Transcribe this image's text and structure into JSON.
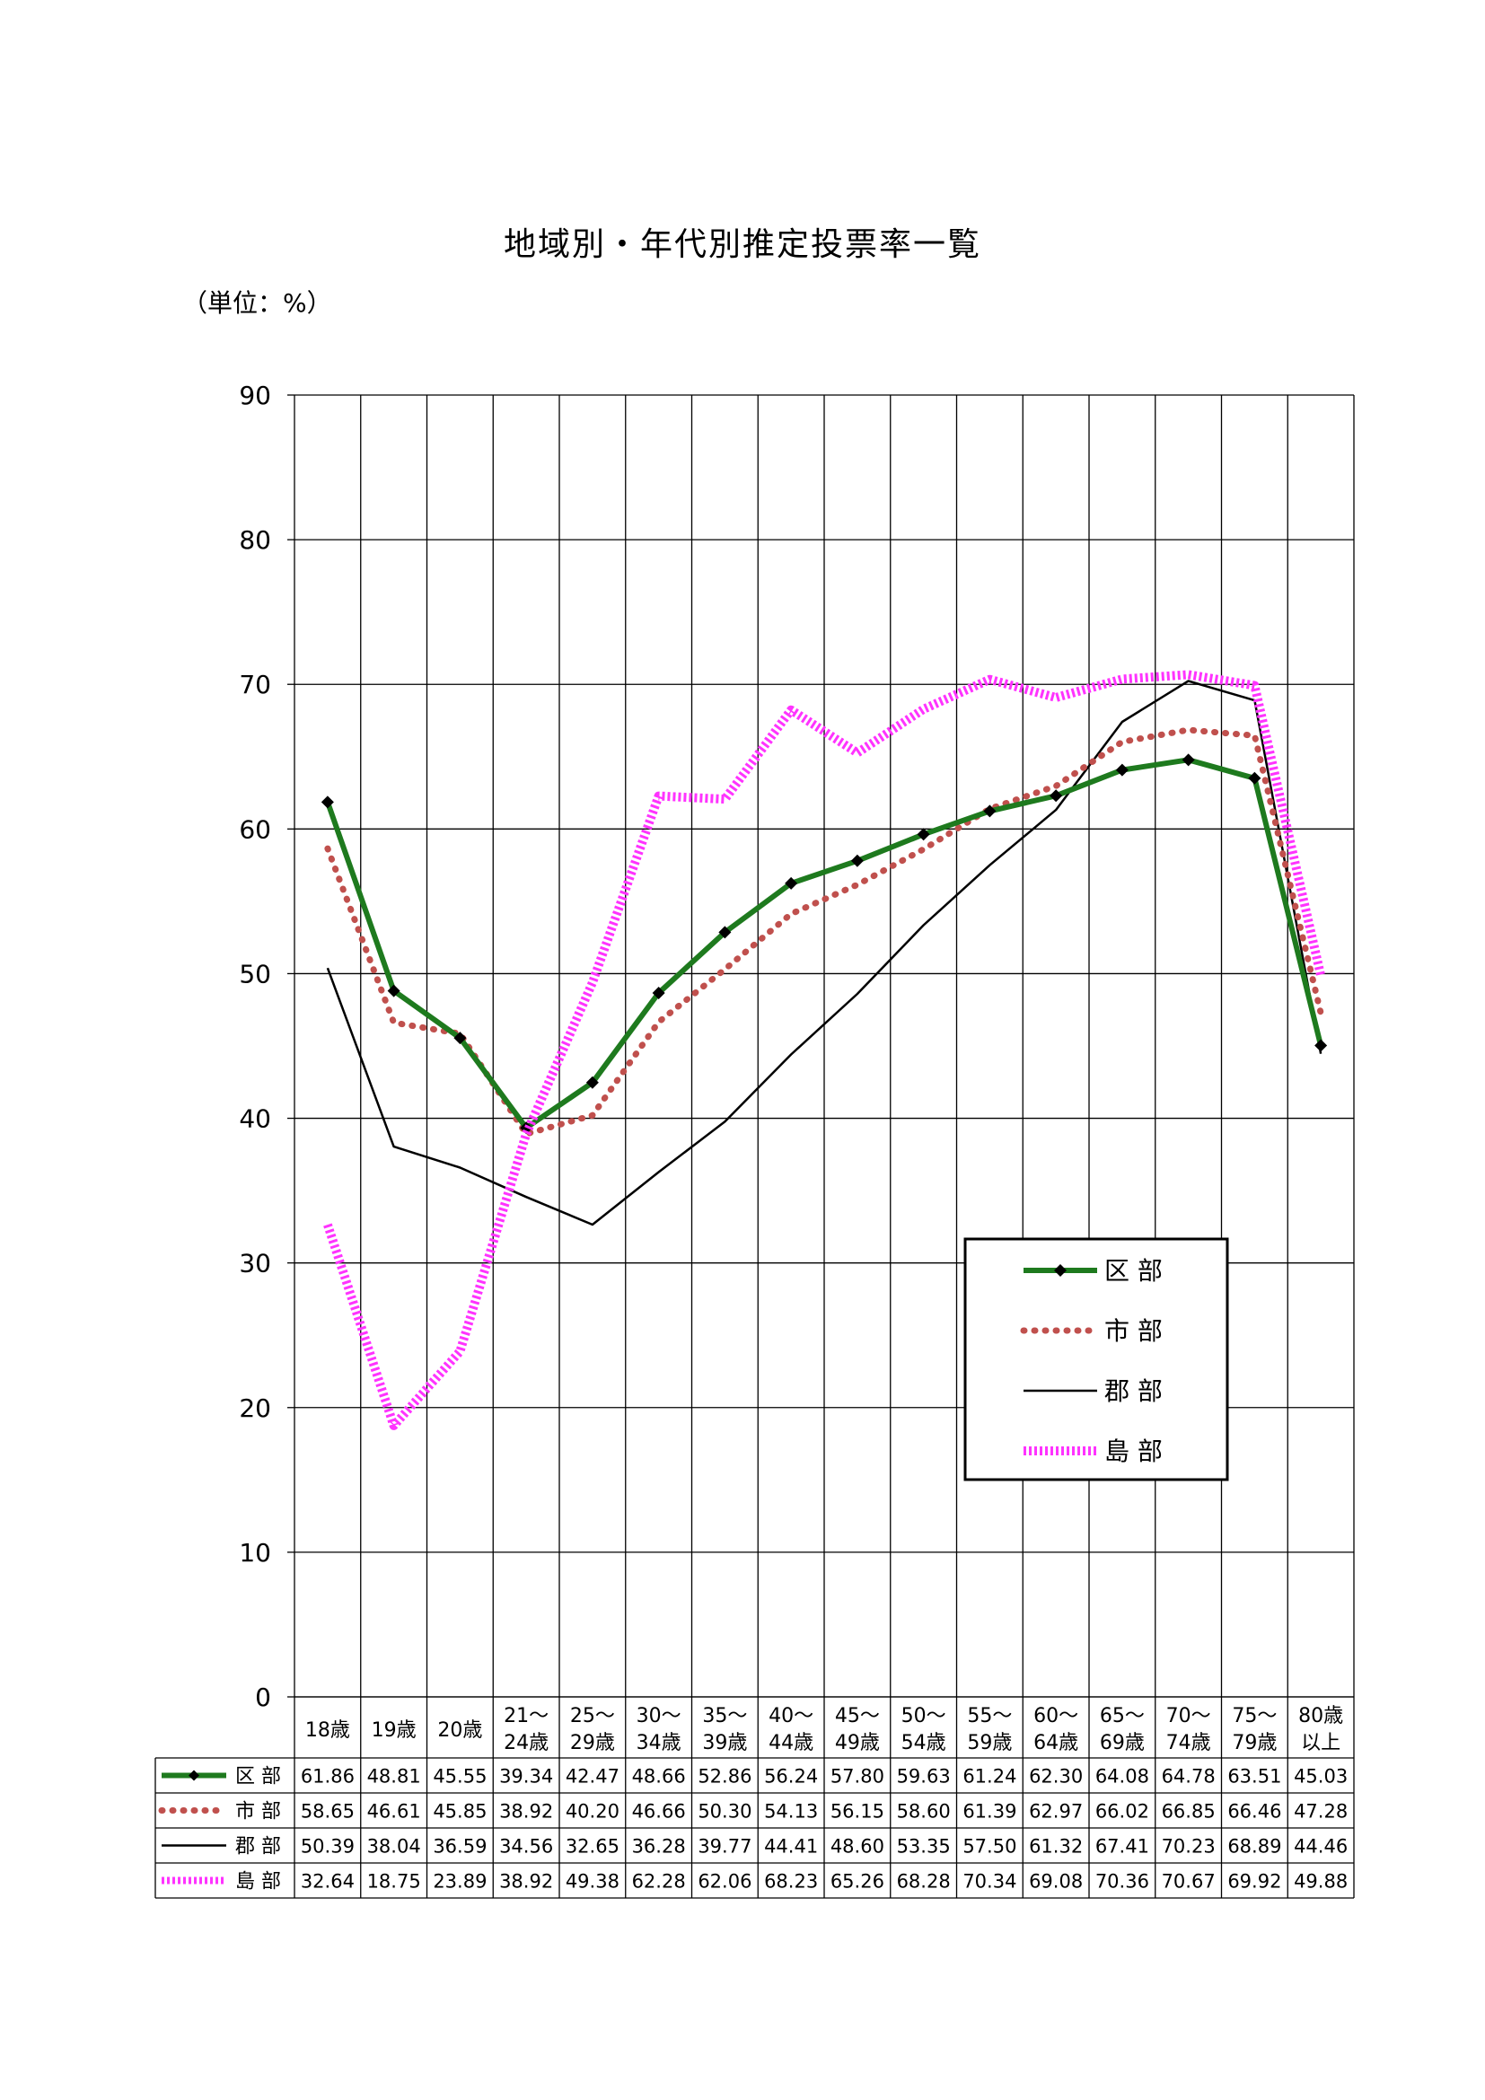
{
  "title": "地域別・年代別推定投票率一覧",
  "unit": "（単位：%）",
  "chart_data": {
    "type": "line",
    "title": "地域別・年代別推定投票率一覧",
    "ylabel": "",
    "xlabel": "",
    "ylim": [
      0,
      90
    ],
    "yticks": [
      0,
      10,
      20,
      30,
      40,
      50,
      60,
      70,
      80,
      90
    ],
    "grid": true,
    "legend_position": "bottom-right",
    "categories": [
      [
        "18歳"
      ],
      [
        "19歳"
      ],
      [
        "20歳"
      ],
      [
        "21～",
        "24歳"
      ],
      [
        "25～",
        "29歳"
      ],
      [
        "30～",
        "34歳"
      ],
      [
        "35～",
        "39歳"
      ],
      [
        "40～",
        "44歳"
      ],
      [
        "45～",
        "49歳"
      ],
      [
        "50～",
        "54歳"
      ],
      [
        "55～",
        "59歳"
      ],
      [
        "60～",
        "64歳"
      ],
      [
        "65～",
        "69歳"
      ],
      [
        "70～",
        "74歳"
      ],
      [
        "75～",
        "79歳"
      ],
      [
        "80歳",
        "以上"
      ]
    ],
    "series": [
      {
        "name": "区 部",
        "color": "#1e7a1e",
        "style": "solid-marker",
        "values": [
          "61.86",
          "48.81",
          "45.55",
          "39.34",
          "42.47",
          "48.66",
          "52.86",
          "56.24",
          "57.80",
          "59.63",
          "61.24",
          "62.30",
          "64.08",
          "64.78",
          "63.51",
          "45.03"
        ]
      },
      {
        "name": "市 部",
        "color": "#c0504d",
        "style": "dotted",
        "values": [
          "58.65",
          "46.61",
          "45.85",
          "38.92",
          "40.20",
          "46.66",
          "50.30",
          "54.13",
          "56.15",
          "58.60",
          "61.39",
          "62.97",
          "66.02",
          "66.85",
          "66.46",
          "47.28"
        ]
      },
      {
        "name": "郡 部",
        "color": "#000000",
        "style": "thin",
        "values": [
          "50.39",
          "38.04",
          "36.59",
          "34.56",
          "32.65",
          "36.28",
          "39.77",
          "44.41",
          "48.60",
          "53.35",
          "57.50",
          "61.32",
          "67.41",
          "70.23",
          "68.89",
          "44.46"
        ]
      },
      {
        "name": "島 部",
        "color": "#ff33ff",
        "style": "thick-dotted",
        "values": [
          "32.64",
          "18.75",
          "23.89",
          "38.92",
          "49.38",
          "62.28",
          "62.06",
          "68.23",
          "65.26",
          "68.28",
          "70.34",
          "69.08",
          "70.36",
          "70.67",
          "69.92",
          "49.88"
        ]
      }
    ]
  }
}
